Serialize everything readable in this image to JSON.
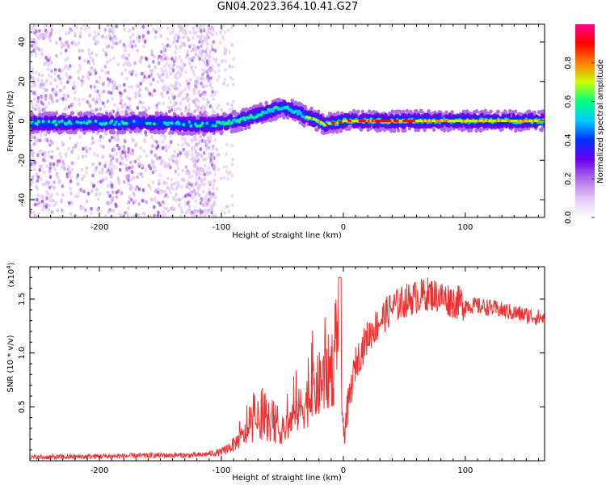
{
  "title": "GN04.2023.364.10.41.G27",
  "chart_data": [
    {
      "type": "heatmap",
      "xlabel": "Height of straight line (km)",
      "ylabel": "Frequency (Hz)",
      "xlim": [
        -257,
        165
      ],
      "ylim": [
        -49,
        49
      ],
      "x_ticks": [
        -200,
        -100,
        0,
        100
      ],
      "y_ticks": [
        -40,
        -20,
        0,
        20,
        40
      ],
      "colorbar": {
        "label": "Normalized spectral amplitude",
        "range": [
          0.0,
          1.0
        ],
        "ticks": [
          0.0,
          0.2,
          0.4,
          0.6,
          0.8
        ]
      },
      "ridge_frequency_hz": {
        "x": [
          -257,
          -200,
          -150,
          -110,
          -95,
          -80,
          -65,
          -50,
          -40,
          -30,
          -20,
          -15,
          -10,
          -5,
          0,
          50,
          100,
          165
        ],
        "y": [
          -1,
          -1,
          -1,
          -2,
          -1,
          1,
          4,
          7,
          5,
          2,
          0,
          -2,
          -1,
          -1,
          0,
          0,
          0,
          0
        ]
      },
      "colormap": [
        "#ffffff",
        "#e3c6f6",
        "#b06ae8",
        "#6a00ee",
        "#0030ff",
        "#00c8ff",
        "#00ff80",
        "#c8ff00",
        "#ff8000",
        "#ff0000",
        "#ff0090"
      ]
    },
    {
      "type": "line",
      "xlabel": "Height of straight line (km)",
      "ylabel": "SNR (10 * v/v)",
      "y_multiplier": "(x10",
      "y_multiplier_exp": "4",
      "y_multiplier_close": ")",
      "xlim": [
        -257,
        165
      ],
      "ylim": [
        0,
        18000
      ],
      "x_ticks": [
        -200,
        -100,
        0,
        100
      ],
      "y_ticks": [
        0.5,
        1.0,
        1.5
      ],
      "y_tick_labels": [
        "0.5",
        "1.0",
        "1.5"
      ],
      "series": [
        {
          "color": "#f03030",
          "x": [
            -257,
            -200,
            -150,
            -120,
            -100,
            -90,
            -80,
            -70,
            -60,
            -50,
            -40,
            -30,
            -20,
            -10,
            -3,
            0,
            10,
            20,
            30,
            40,
            50,
            60,
            70,
            80,
            90,
            100,
            120,
            140,
            165
          ],
          "y": [
            300,
            400,
            500,
            500,
            800,
            1500,
            2500,
            3600,
            3200,
            2600,
            4200,
            5500,
            7000,
            8500,
            10500,
            2500,
            9000,
            11500,
            13000,
            14200,
            14800,
            15200,
            15500,
            15200,
            14800,
            14500,
            14200,
            13700,
            13200
          ]
        }
      ]
    }
  ]
}
